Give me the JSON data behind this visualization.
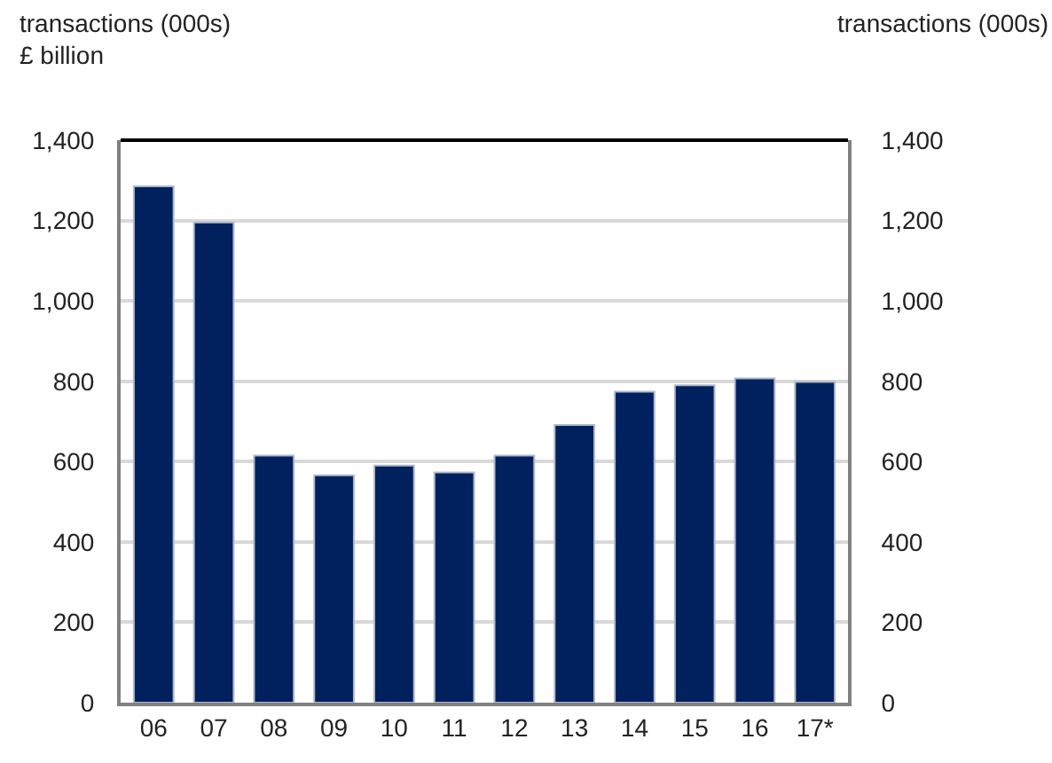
{
  "chart_data": {
    "type": "bar",
    "ylabel": "transactions (000s)\n£ billion",
    "y2label": "transactions (000s)",
    "categories": [
      "06",
      "07",
      "08",
      "09",
      "10",
      "11",
      "12",
      "13",
      "14",
      "15",
      "16",
      "17*"
    ],
    "series": [
      {
        "color": "#00215e",
        "values": [
          1285,
          1195,
          615,
          566,
          590,
          573,
          615,
          691,
          774,
          790,
          807,
          798
        ]
      }
    ],
    "ylim": [
      0,
      1400
    ],
    "yticks": [
      {
        "value": 0,
        "label": "0"
      },
      {
        "value": 200,
        "label": "200"
      },
      {
        "value": 400,
        "label": "400"
      },
      {
        "value": 600,
        "label": "600"
      },
      {
        "value": 800,
        "label": "800"
      },
      {
        "value": 1000,
        "label": "1,000"
      },
      {
        "value": 1200,
        "label": "1,200"
      },
      {
        "value": 1400,
        "label": "1,400"
      }
    ],
    "y2lim": [
      0,
      1400
    ],
    "y2ticks": [
      {
        "value": 0,
        "label": "0"
      },
      {
        "value": 200,
        "label": "200"
      },
      {
        "value": 400,
        "label": "400"
      },
      {
        "value": 600,
        "label": "600"
      },
      {
        "value": 800,
        "label": "800"
      },
      {
        "value": 1000,
        "label": "1,000"
      },
      {
        "value": 1200,
        "label": "1,200"
      },
      {
        "value": 1400,
        "label": "1,400"
      }
    ],
    "grid": "y",
    "legend": false
  }
}
